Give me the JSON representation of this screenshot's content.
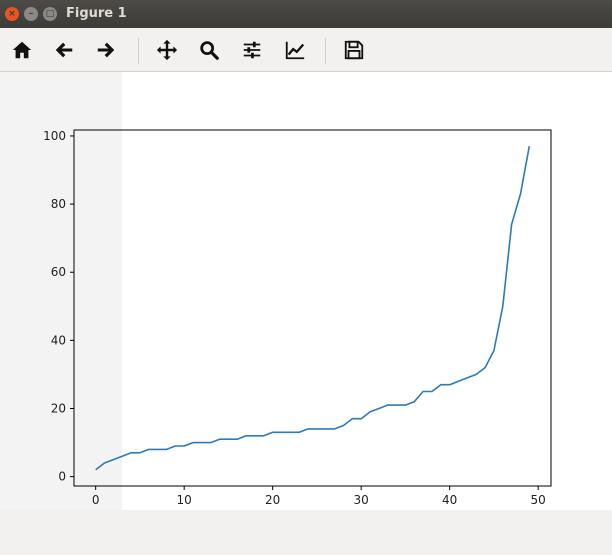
{
  "window": {
    "title": "Figure 1",
    "close_glyph": "×",
    "min_glyph": "–",
    "max_glyph": "□"
  },
  "toolbar": {
    "items": [
      {
        "name": "home-button",
        "icon": "home-icon"
      },
      {
        "name": "back-button",
        "icon": "arrow-left-icon"
      },
      {
        "name": "forward-button",
        "icon": "arrow-right-icon"
      },
      {
        "name": "pan-button",
        "icon": "move-icon"
      },
      {
        "name": "zoom-button",
        "icon": "magnifier-icon"
      },
      {
        "name": "configure-subplots-button",
        "icon": "sliders-icon"
      },
      {
        "name": "edit-axes-button",
        "icon": "chart-line-icon"
      },
      {
        "name": "save-button",
        "icon": "floppy-disk-icon"
      }
    ]
  },
  "status": {
    "text": ""
  },
  "colors": {
    "line": "#2e7ab6",
    "axes": "#000000"
  },
  "chart_data": {
    "type": "line",
    "title": "",
    "xlabel": "",
    "ylabel": "",
    "xlim": [
      -2.45,
      51.45
    ],
    "ylim": [
      -2.75,
      101.75
    ],
    "xticks": [
      0,
      10,
      20,
      30,
      40,
      50
    ],
    "yticks": [
      0,
      20,
      40,
      60,
      80,
      100
    ],
    "grid": false,
    "series": [
      {
        "x": [
          0,
          1,
          2,
          3,
          4,
          5,
          6,
          7,
          8,
          9,
          10,
          11,
          12,
          13,
          14,
          15,
          16,
          17,
          18,
          19,
          20,
          21,
          22,
          23,
          24,
          25,
          26,
          27,
          28,
          29,
          30,
          31,
          32,
          33,
          34,
          35,
          36,
          37,
          38,
          39,
          40,
          41,
          42,
          43,
          44,
          45,
          46,
          47,
          48,
          49
        ],
        "values": [
          2,
          4,
          5,
          6,
          7,
          7,
          8,
          8,
          8,
          9,
          9,
          10,
          10,
          10,
          11,
          11,
          11,
          12,
          12,
          12,
          13,
          13,
          13,
          13,
          14,
          14,
          14,
          14,
          15,
          17,
          17,
          19,
          20,
          21,
          21,
          21,
          22,
          25,
          25,
          27,
          27,
          28,
          29,
          30,
          32,
          37,
          50,
          74,
          83,
          97
        ]
      }
    ]
  }
}
